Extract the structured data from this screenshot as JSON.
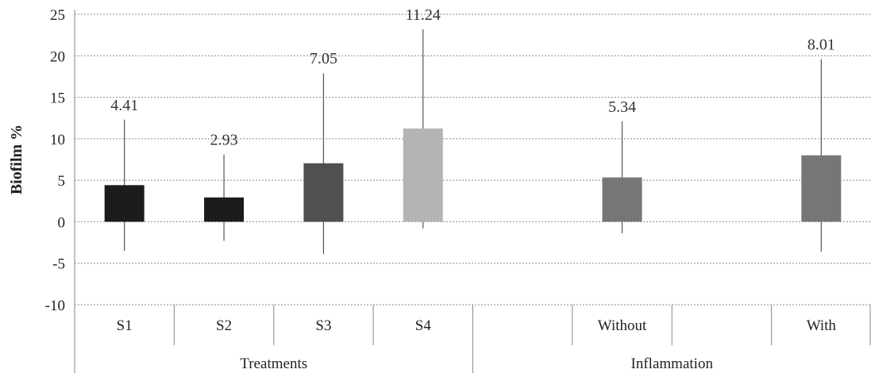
{
  "chart_data": {
    "type": "bar",
    "title": "",
    "xlabel": "",
    "ylabel": "Biofilm %",
    "ylim": [
      -10,
      25
    ],
    "yticks": [
      25,
      20,
      15,
      10,
      5,
      0,
      -5,
      -10
    ],
    "grid": true,
    "categories": [
      "S1",
      "S2",
      "S3",
      "S4",
      "",
      "Without",
      "",
      "With"
    ],
    "groups": [
      {
        "label": "Treatments",
        "start": 0,
        "end": 4
      },
      {
        "label": "Inflammation",
        "start": 4,
        "end": 8
      }
    ],
    "bars": [
      {
        "category": "S1",
        "value": 4.41,
        "label": "4.41",
        "err_low": -3.5,
        "err_high": 12.3,
        "color": "#1c1c1c"
      },
      {
        "category": "S2",
        "value": 2.93,
        "label": "2.93",
        "err_low": -2.3,
        "err_high": 8.1,
        "color": "#1c1c1c"
      },
      {
        "category": "S3",
        "value": 7.05,
        "label": "7.05",
        "err_low": -3.9,
        "err_high": 17.9,
        "color": "#505050"
      },
      {
        "category": "S4",
        "value": 11.24,
        "label": "11.24",
        "err_low": -0.8,
        "err_high": 23.2,
        "color": "#b4b4b4"
      },
      {
        "category": "Without",
        "value": 5.34,
        "label": "5.34",
        "err_low": -1.4,
        "err_high": 12.1,
        "color": "#767676"
      },
      {
        "category": "With",
        "value": 8.01,
        "label": "8.01",
        "err_low": -3.6,
        "err_high": 19.6,
        "color": "#767676"
      }
    ]
  }
}
